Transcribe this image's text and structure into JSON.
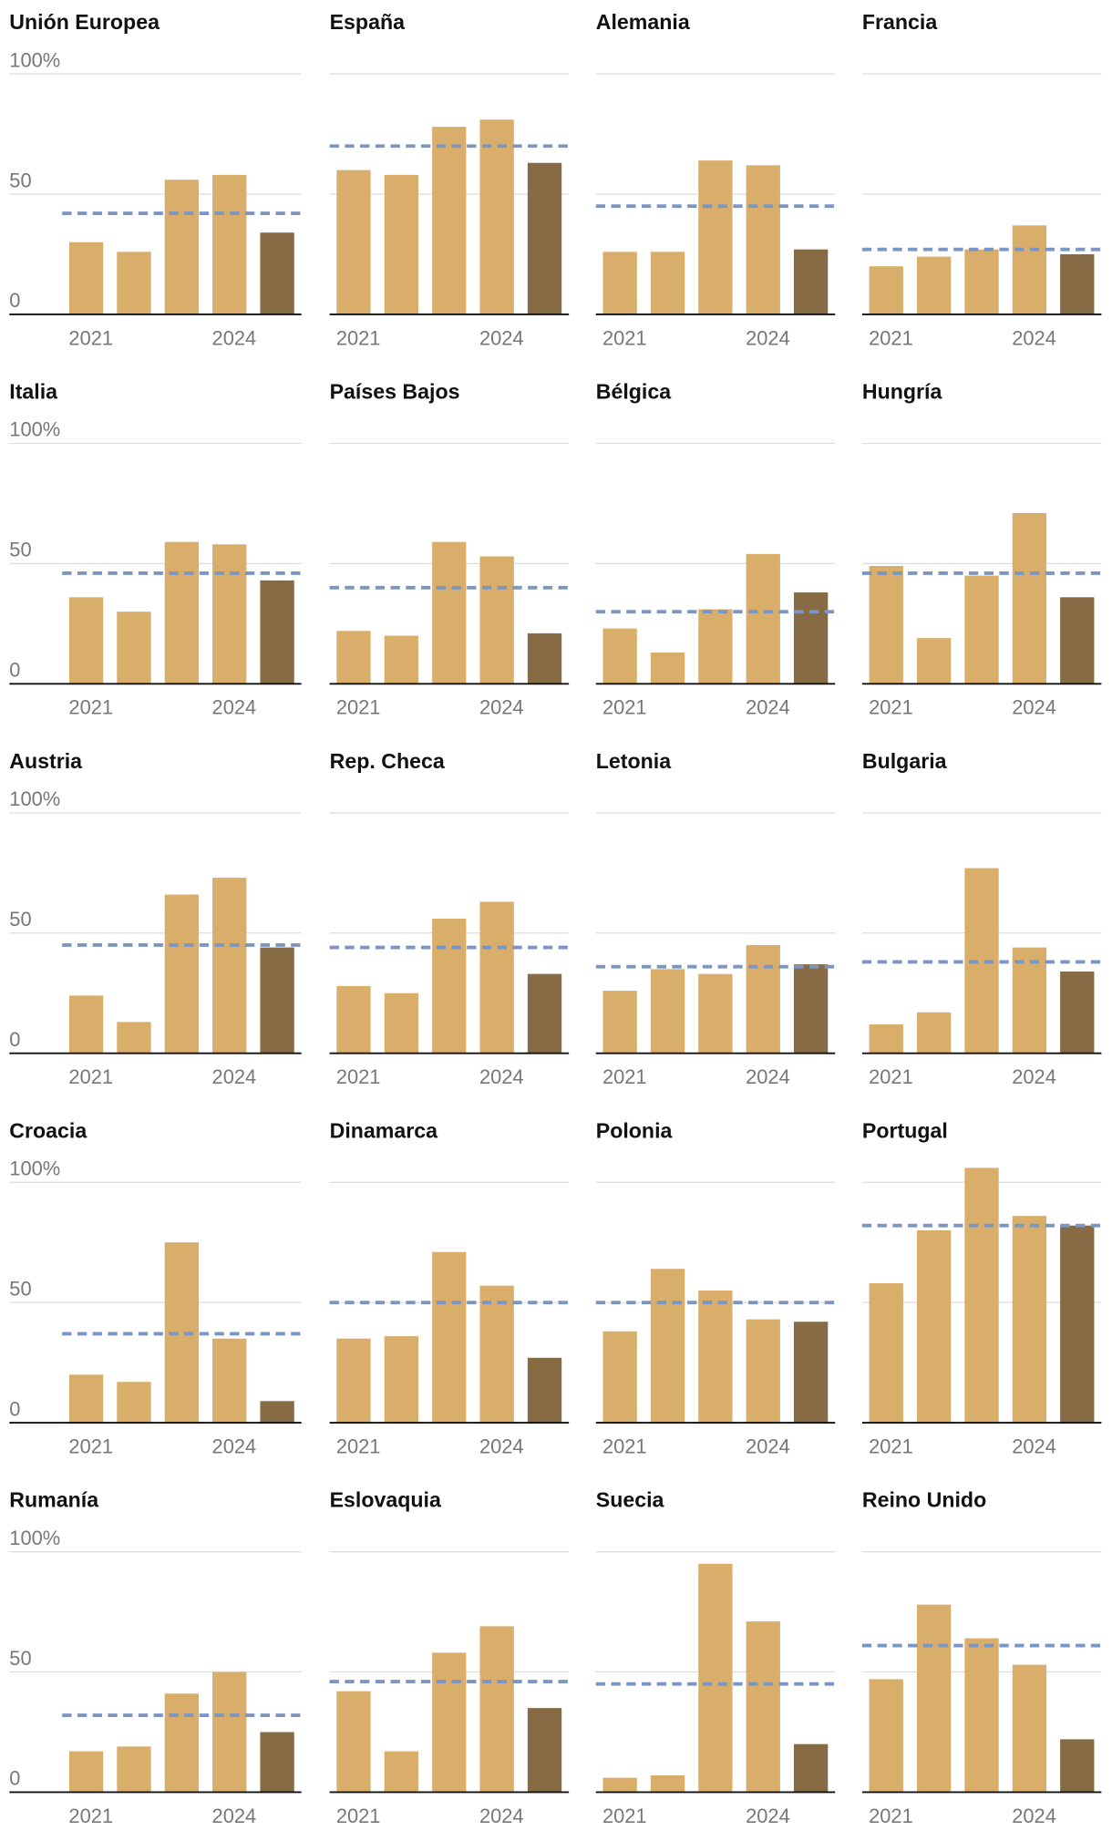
{
  "chart_data": [
    {
      "type": "bar",
      "title": "Unión Europea",
      "categories": [
        "2021",
        null,
        null,
        "2024",
        null
      ],
      "values": [
        30,
        26,
        56,
        58,
        34
      ],
      "reference": 42,
      "colors": [
        "#d9ae6b",
        "#d9ae6b",
        "#d9ae6b",
        "#d9ae6b",
        "#876b44"
      ],
      "reference_color": "#7b96c2",
      "ylim": [
        0,
        100
      ],
      "yticks": [
        0,
        50,
        {
          "value": 100,
          "label": "100%"
        }
      ],
      "ytick_labels": true
    },
    {
      "type": "bar",
      "title": "España",
      "categories": [
        "2021",
        null,
        null,
        "2024",
        null
      ],
      "values": [
        60,
        58,
        78,
        81,
        63
      ],
      "reference": 70,
      "colors": [
        "#d9ae6b",
        "#d9ae6b",
        "#d9ae6b",
        "#d9ae6b",
        "#876b44"
      ],
      "reference_color": "#7b96c2",
      "ylim": [
        0,
        100
      ],
      "yticks": [
        0,
        50,
        100
      ],
      "ytick_labels": false
    },
    {
      "type": "bar",
      "title": "Alemania",
      "categories": [
        "2021",
        null,
        null,
        "2024",
        null
      ],
      "values": [
        26,
        26,
        64,
        62,
        27
      ],
      "reference": 45,
      "colors": [
        "#d9ae6b",
        "#d9ae6b",
        "#d9ae6b",
        "#d9ae6b",
        "#876b44"
      ],
      "reference_color": "#7b96c2",
      "ylim": [
        0,
        100
      ],
      "yticks": [
        0,
        50,
        100
      ],
      "ytick_labels": false
    },
    {
      "type": "bar",
      "title": "Francia",
      "categories": [
        "2021",
        null,
        null,
        "2024",
        null
      ],
      "values": [
        20,
        24,
        27,
        37,
        25
      ],
      "reference": 27,
      "colors": [
        "#d9ae6b",
        "#d9ae6b",
        "#d9ae6b",
        "#d9ae6b",
        "#876b44"
      ],
      "reference_color": "#7b96c2",
      "ylim": [
        0,
        100
      ],
      "yticks": [
        0,
        50,
        100
      ],
      "ytick_labels": false
    },
    {
      "type": "bar",
      "title": "Italia",
      "categories": [
        "2021",
        null,
        null,
        "2024",
        null
      ],
      "values": [
        36,
        30,
        59,
        58,
        43
      ],
      "reference": 46,
      "colors": [
        "#d9ae6b",
        "#d9ae6b",
        "#d9ae6b",
        "#d9ae6b",
        "#876b44"
      ],
      "reference_color": "#7b96c2",
      "ylim": [
        0,
        100
      ],
      "yticks": [
        0,
        50,
        {
          "value": 100,
          "label": "100%"
        }
      ],
      "ytick_labels": true
    },
    {
      "type": "bar",
      "title": "Países Bajos",
      "categories": [
        "2021",
        null,
        null,
        "2024",
        null
      ],
      "values": [
        22,
        20,
        59,
        53,
        21
      ],
      "reference": 40,
      "colors": [
        "#d9ae6b",
        "#d9ae6b",
        "#d9ae6b",
        "#d9ae6b",
        "#876b44"
      ],
      "reference_color": "#7b96c2",
      "ylim": [
        0,
        100
      ],
      "yticks": [
        0,
        50,
        100
      ],
      "ytick_labels": false
    },
    {
      "type": "bar",
      "title": "Bélgica",
      "categories": [
        "2021",
        null,
        null,
        "2024",
        null
      ],
      "values": [
        23,
        13,
        31,
        54,
        38
      ],
      "reference": 30,
      "colors": [
        "#d9ae6b",
        "#d9ae6b",
        "#d9ae6b",
        "#d9ae6b",
        "#876b44"
      ],
      "reference_color": "#7b96c2",
      "ylim": [
        0,
        100
      ],
      "yticks": [
        0,
        50,
        100
      ],
      "ytick_labels": false
    },
    {
      "type": "bar",
      "title": "Hungría",
      "categories": [
        "2021",
        null,
        null,
        "2024",
        null
      ],
      "values": [
        49,
        19,
        45,
        71,
        36
      ],
      "reference": 46,
      "colors": [
        "#d9ae6b",
        "#d9ae6b",
        "#d9ae6b",
        "#d9ae6b",
        "#876b44"
      ],
      "reference_color": "#7b96c2",
      "ylim": [
        0,
        100
      ],
      "yticks": [
        0,
        50,
        100
      ],
      "ytick_labels": false
    },
    {
      "type": "bar",
      "title": "Austria",
      "categories": [
        "2021",
        null,
        null,
        "2024",
        null
      ],
      "values": [
        24,
        13,
        66,
        73,
        44
      ],
      "reference": 45,
      "colors": [
        "#d9ae6b",
        "#d9ae6b",
        "#d9ae6b",
        "#d9ae6b",
        "#876b44"
      ],
      "reference_color": "#7b96c2",
      "ylim": [
        0,
        100
      ],
      "yticks": [
        0,
        50,
        {
          "value": 100,
          "label": "100%"
        }
      ],
      "ytick_labels": true
    },
    {
      "type": "bar",
      "title": "Rep. Checa",
      "categories": [
        "2021",
        null,
        null,
        "2024",
        null
      ],
      "values": [
        28,
        25,
        56,
        63,
        33
      ],
      "reference": 44,
      "colors": [
        "#d9ae6b",
        "#d9ae6b",
        "#d9ae6b",
        "#d9ae6b",
        "#876b44"
      ],
      "reference_color": "#7b96c2",
      "ylim": [
        0,
        100
      ],
      "yticks": [
        0,
        50,
        100
      ],
      "ytick_labels": false
    },
    {
      "type": "bar",
      "title": "Letonia",
      "categories": [
        "2021",
        null,
        null,
        "2024",
        null
      ],
      "values": [
        26,
        35,
        33,
        45,
        37
      ],
      "reference": 36,
      "colors": [
        "#d9ae6b",
        "#d9ae6b",
        "#d9ae6b",
        "#d9ae6b",
        "#876b44"
      ],
      "reference_color": "#7b96c2",
      "ylim": [
        0,
        100
      ],
      "yticks": [
        0,
        50,
        100
      ],
      "ytick_labels": false
    },
    {
      "type": "bar",
      "title": "Bulgaria",
      "categories": [
        "2021",
        null,
        null,
        "2024",
        null
      ],
      "values": [
        12,
        17,
        77,
        44,
        34
      ],
      "reference": 38,
      "colors": [
        "#d9ae6b",
        "#d9ae6b",
        "#d9ae6b",
        "#d9ae6b",
        "#876b44"
      ],
      "reference_color": "#7b96c2",
      "ylim": [
        0,
        100
      ],
      "yticks": [
        0,
        50,
        100
      ],
      "ytick_labels": false
    },
    {
      "type": "bar",
      "title": "Croacia",
      "categories": [
        "2021",
        null,
        null,
        "2024",
        null
      ],
      "values": [
        20,
        17,
        75,
        35,
        9
      ],
      "reference": 37,
      "colors": [
        "#d9ae6b",
        "#d9ae6b",
        "#d9ae6b",
        "#d9ae6b",
        "#876b44"
      ],
      "reference_color": "#7b96c2",
      "ylim": [
        0,
        100
      ],
      "yticks": [
        0,
        50,
        {
          "value": 100,
          "label": "100%"
        }
      ],
      "ytick_labels": true
    },
    {
      "type": "bar",
      "title": "Dinamarca",
      "categories": [
        "2021",
        null,
        null,
        "2024",
        null
      ],
      "values": [
        35,
        36,
        71,
        57,
        27
      ],
      "reference": 50,
      "colors": [
        "#d9ae6b",
        "#d9ae6b",
        "#d9ae6b",
        "#d9ae6b",
        "#876b44"
      ],
      "reference_color": "#7b96c2",
      "ylim": [
        0,
        100
      ],
      "yticks": [
        0,
        50,
        100
      ],
      "ytick_labels": false
    },
    {
      "type": "bar",
      "title": "Polonia",
      "categories": [
        "2021",
        null,
        null,
        "2024",
        null
      ],
      "values": [
        38,
        64,
        55,
        43,
        42
      ],
      "reference": 50,
      "colors": [
        "#d9ae6b",
        "#d9ae6b",
        "#d9ae6b",
        "#d9ae6b",
        "#876b44"
      ],
      "reference_color": "#7b96c2",
      "ylim": [
        0,
        100
      ],
      "yticks": [
        0,
        50,
        100
      ],
      "ytick_labels": false
    },
    {
      "type": "bar",
      "title": "Portugal",
      "categories": [
        "2021",
        null,
        null,
        "2024",
        null
      ],
      "values": [
        58,
        80,
        106,
        86,
        82
      ],
      "reference": 82,
      "colors": [
        "#d9ae6b",
        "#d9ae6b",
        "#d9ae6b",
        "#d9ae6b",
        "#876b44"
      ],
      "reference_color": "#7b96c2",
      "ylim": [
        0,
        100
      ],
      "yticks": [
        0,
        50,
        100
      ],
      "ytick_labels": false
    },
    {
      "type": "bar",
      "title": "Rumanía",
      "categories": [
        "2021",
        null,
        null,
        "2024",
        null
      ],
      "values": [
        17,
        19,
        41,
        50,
        25
      ],
      "reference": 32,
      "colors": [
        "#d9ae6b",
        "#d9ae6b",
        "#d9ae6b",
        "#d9ae6b",
        "#876b44"
      ],
      "reference_color": "#7b96c2",
      "ylim": [
        0,
        100
      ],
      "yticks": [
        0,
        50,
        {
          "value": 100,
          "label": "100%"
        }
      ],
      "ytick_labels": true
    },
    {
      "type": "bar",
      "title": "Eslovaquia",
      "categories": [
        "2021",
        null,
        null,
        "2024",
        null
      ],
      "values": [
        42,
        17,
        58,
        69,
        35
      ],
      "reference": 46,
      "colors": [
        "#d9ae6b",
        "#d9ae6b",
        "#d9ae6b",
        "#d9ae6b",
        "#876b44"
      ],
      "reference_color": "#7b96c2",
      "ylim": [
        0,
        100
      ],
      "yticks": [
        0,
        50,
        100
      ],
      "ytick_labels": false
    },
    {
      "type": "bar",
      "title": "Suecia",
      "categories": [
        "2021",
        null,
        null,
        "2024",
        null
      ],
      "values": [
        6,
        7,
        95,
        71,
        20
      ],
      "reference": 45,
      "colors": [
        "#d9ae6b",
        "#d9ae6b",
        "#d9ae6b",
        "#d9ae6b",
        "#876b44"
      ],
      "reference_color": "#7b96c2",
      "ylim": [
        0,
        100
      ],
      "yticks": [
        0,
        50,
        100
      ],
      "ytick_labels": false
    },
    {
      "type": "bar",
      "title": "Reino Unido",
      "categories": [
        "2021",
        null,
        null,
        "2024",
        null
      ],
      "values": [
        47,
        78,
        64,
        53,
        22
      ],
      "reference": 61,
      "colors": [
        "#d9ae6b",
        "#d9ae6b",
        "#d9ae6b",
        "#d9ae6b",
        "#876b44"
      ],
      "reference_color": "#7b96c2",
      "ylim": [
        0,
        100
      ],
      "yticks": [
        0,
        50,
        100
      ],
      "ytick_labels": false
    }
  ]
}
